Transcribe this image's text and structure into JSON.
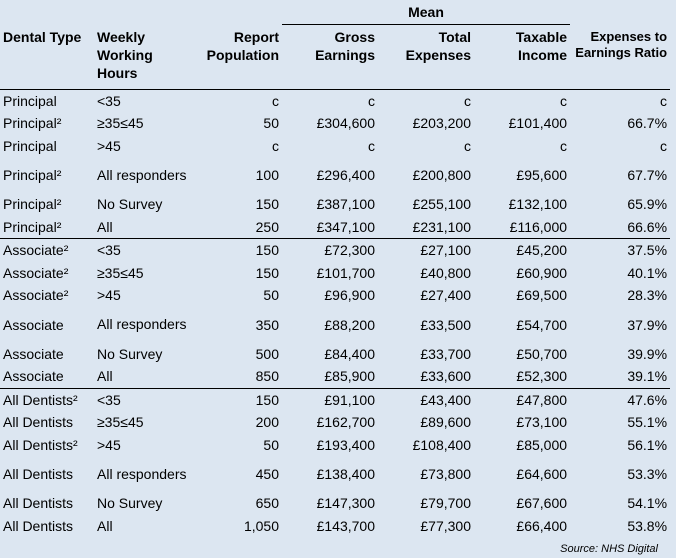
{
  "header": {
    "mean_label": "Mean",
    "dental_type": "Dental Type",
    "weekly_hours": "Weekly Working Hours",
    "report_population": "Report Population",
    "gross_earnings": "Gross Earnings",
    "total_expenses": "Total Expenses",
    "taxable_income": "Taxable Income",
    "expenses_ratio": "Expenses to Earnings Ratio"
  },
  "rows": [
    {
      "type": "Principal",
      "hours": "<35",
      "population": "c",
      "gross": "c",
      "expenses": "c",
      "income": "c",
      "ratio": "c"
    },
    {
      "type": "Principal²",
      "hours": "≥35≤45",
      "population": "50",
      "gross": "£304,600",
      "expenses": "£203,200",
      "income": "£101,400",
      "ratio": "66.7%"
    },
    {
      "type": "Principal",
      "hours": ">45",
      "population": "c",
      "gross": "c",
      "expenses": "c",
      "income": "c",
      "ratio": "c"
    },
    {
      "type": "Principal²",
      "hours": "All responders",
      "population": "100",
      "gross": "£296,400",
      "expenses": "£200,800",
      "income": "£95,600",
      "ratio": "67.7%"
    },
    {
      "type": "Principal²",
      "hours": "No Survey",
      "population": "150",
      "gross": "£387,100",
      "expenses": "£255,100",
      "income": "£132,100",
      "ratio": "65.9%"
    },
    {
      "type": "Principal²",
      "hours": "All",
      "population": "250",
      "gross": "£347,100",
      "expenses": "£231,100",
      "income": "£116,000",
      "ratio": "66.6%"
    },
    {
      "type": "Associate²",
      "hours": "<35",
      "population": "150",
      "gross": "£72,300",
      "expenses": "£27,100",
      "income": "£45,200",
      "ratio": "37.5%"
    },
    {
      "type": "Associate²",
      "hours": "≥35≤45",
      "population": "150",
      "gross": "£101,700",
      "expenses": "£40,800",
      "income": "£60,900",
      "ratio": "40.1%"
    },
    {
      "type": "Associate²",
      "hours": ">45",
      "population": "50",
      "gross": "£96,900",
      "expenses": "£27,400",
      "income": "£69,500",
      "ratio": "28.3%"
    },
    {
      "type": "Associate",
      "hours": "All responders",
      "population": "350",
      "gross": "£88,200",
      "expenses": "£33,500",
      "income": "£54,700",
      "ratio": "37.9%"
    },
    {
      "type": "Associate",
      "hours": "No Survey",
      "population": "500",
      "gross": "£84,400",
      "expenses": "£33,700",
      "income": "£50,700",
      "ratio": "39.9%"
    },
    {
      "type": "Associate",
      "hours": "All",
      "population": "850",
      "gross": "£85,900",
      "expenses": "£33,600",
      "income": "£52,300",
      "ratio": "39.1%"
    },
    {
      "type": "All Dentists²",
      "hours": "<35",
      "population": "150",
      "gross": "£91,100",
      "expenses": "£43,400",
      "income": "£47,800",
      "ratio": "47.6%"
    },
    {
      "type": "All Dentists",
      "hours": "≥35≤45",
      "population": "200",
      "gross": "£162,700",
      "expenses": "£89,600",
      "income": "£73,100",
      "ratio": "55.1%"
    },
    {
      "type": "All Dentists²",
      "hours": ">45",
      "population": "50",
      "gross": "£193,400",
      "expenses": "£108,400",
      "income": "£85,000",
      "ratio": "56.1%"
    },
    {
      "type": "All Dentists",
      "hours": "All responders",
      "population": "450",
      "gross": "£138,400",
      "expenses": "£73,800",
      "income": "£64,600",
      "ratio": "53.3%"
    },
    {
      "type": "All Dentists",
      "hours": "No Survey",
      "population": "650",
      "gross": "£147,300",
      "expenses": "£79,700",
      "income": "£67,600",
      "ratio": "54.1%"
    },
    {
      "type": "All Dentists",
      "hours": "All",
      "population": "1,050",
      "gross": "£143,700",
      "expenses": "£77,300",
      "income": "£66,400",
      "ratio": "53.8%"
    }
  ],
  "source": "Source: NHS Digital"
}
